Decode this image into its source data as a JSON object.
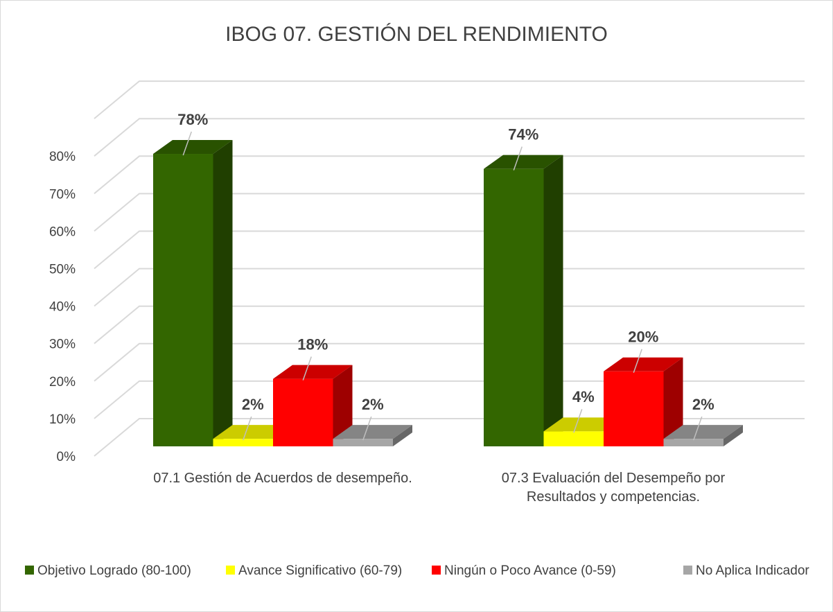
{
  "chart_data": {
    "type": "bar3d",
    "title": "IBOG 07. GESTIÓN DEL RENDIMIENTO",
    "categories": [
      "07.1 Gestión de Acuerdos de desempeño.",
      "07.3 Evaluación del Desempeño por Resultados y competencias."
    ],
    "series": [
      {
        "name": "Objetivo Logrado (80-100)",
        "color": "#336600",
        "values": [
          78,
          74
        ],
        "value_labels": [
          "78%",
          "74%"
        ]
      },
      {
        "name": "Avance Significativo (60-79)",
        "color": "#ffff00",
        "values": [
          2,
          4
        ],
        "value_labels": [
          "2%",
          "4%"
        ]
      },
      {
        "name": "Ningún o Poco Avance (0-59)",
        "color": "#ff0000",
        "values": [
          18,
          20
        ],
        "value_labels": [
          "18%",
          "20%"
        ]
      },
      {
        "name": "No Aplica Indicador",
        "color": "#a6a6a6",
        "values": [
          2,
          2
        ],
        "value_labels": [
          "2%",
          "2%"
        ]
      }
    ],
    "ylim": [
      0,
      80
    ],
    "yticks": [
      {
        "value": 0,
        "label": "0%"
      },
      {
        "value": 10,
        "label": "10%"
      },
      {
        "value": 20,
        "label": "20%"
      },
      {
        "value": 30,
        "label": "30%"
      },
      {
        "value": 40,
        "label": "40%"
      },
      {
        "value": 50,
        "label": "50%"
      },
      {
        "value": 60,
        "label": "60%"
      },
      {
        "value": 70,
        "label": "70%"
      },
      {
        "value": 80,
        "label": "80%"
      }
    ],
    "grid": true,
    "legend": "bottom"
  }
}
